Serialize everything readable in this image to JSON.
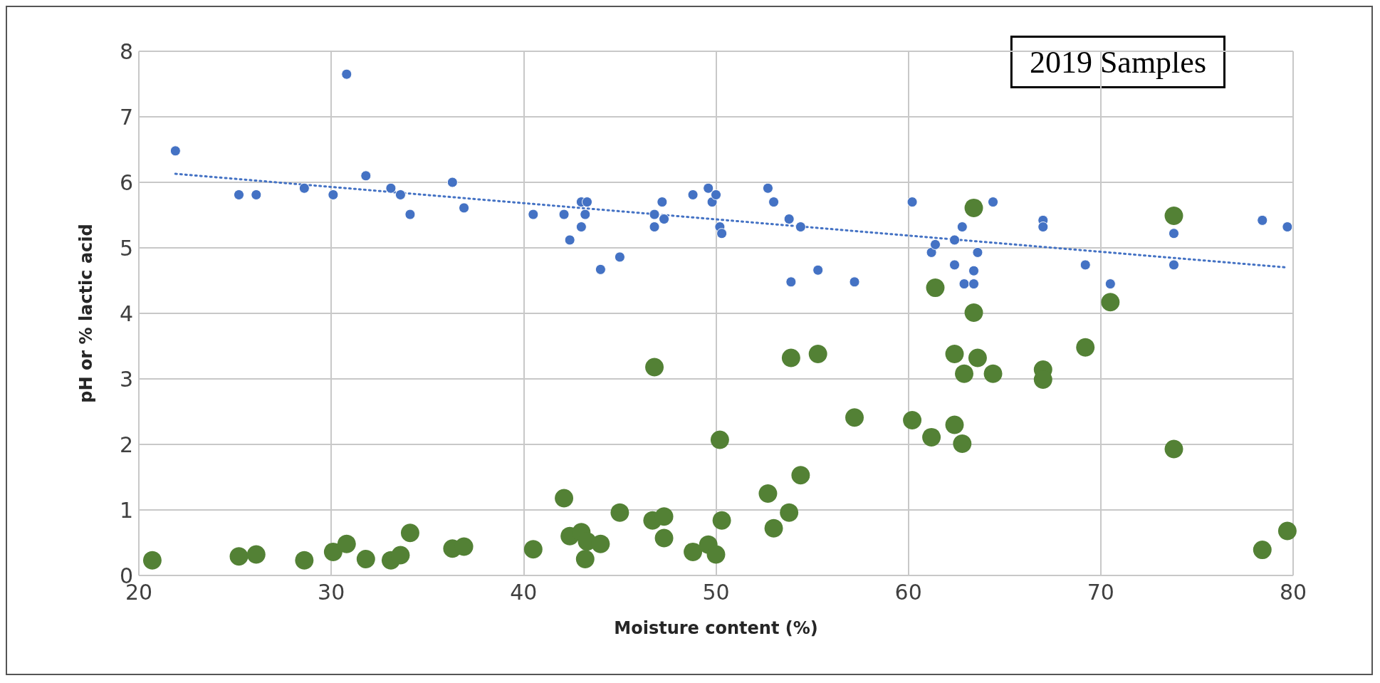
{
  "chart_data": {
    "type": "scatter",
    "xlabel": "Moisture content (%)",
    "ylabel": "pH or % lactic acid",
    "annotations": [
      "2019 Samples"
    ],
    "xlim": [
      20,
      80
    ],
    "xticks": [
      20,
      30,
      40,
      50,
      60,
      70,
      80
    ],
    "ylim": [
      0,
      8
    ],
    "yticks": [
      0,
      1,
      2,
      3,
      4,
      5,
      6,
      7,
      8
    ],
    "grid": true,
    "marker": "circle",
    "series": [
      {
        "color": "#4472c4",
        "x": [
          21.9,
          25.2,
          26.1,
          28.6,
          30.1,
          30.8,
          31.8,
          33.1,
          33.6,
          34.1,
          36.3,
          36.9,
          40.5,
          42.1,
          42.4,
          43.0,
          43.3,
          43.0,
          43.2,
          44.0,
          45.0,
          46.8,
          46.8,
          47.2,
          47.3,
          48.8,
          49.6,
          49.8,
          50.0,
          50.2,
          50.3,
          52.7,
          53.0,
          53.8,
          53.9,
          54.4,
          55.3,
          57.2,
          60.2,
          61.2,
          61.4,
          62.4,
          62.4,
          62.8,
          62.9,
          63.4,
          63.4,
          63.6,
          64.4,
          67.0,
          67.0,
          69.2,
          70.5,
          73.8,
          73.8,
          78.4,
          79.7
        ],
        "values": [
          6.48,
          5.81,
          5.81,
          5.91,
          5.81,
          7.65,
          6.1,
          5.91,
          5.81,
          5.51,
          6.0,
          5.61,
          5.51,
          5.51,
          5.12,
          5.7,
          5.7,
          5.32,
          5.51,
          4.67,
          4.86,
          5.51,
          5.32,
          5.7,
          5.44,
          5.81,
          5.91,
          5.7,
          5.81,
          5.32,
          5.22,
          5.91,
          5.7,
          5.44,
          4.48,
          5.32,
          4.66,
          4.48,
          5.7,
          4.93,
          5.05,
          5.12,
          4.74,
          5.32,
          4.45,
          4.65,
          4.45,
          4.93,
          5.7,
          5.42,
          5.32,
          4.74,
          4.45,
          5.22,
          4.74,
          5.42,
          5.32
        ]
      },
      {
        "color": "#538135",
        "x": [
          20.7,
          25.2,
          26.1,
          28.6,
          30.1,
          30.8,
          31.8,
          33.1,
          33.6,
          34.1,
          36.3,
          36.9,
          40.5,
          42.1,
          42.4,
          43.0,
          43.2,
          43.3,
          44.0,
          45.0,
          46.7,
          46.8,
          47.3,
          47.3,
          48.8,
          49.6,
          50.0,
          50.2,
          50.3,
          52.7,
          53.0,
          53.8,
          53.9,
          54.4,
          55.3,
          57.2,
          60.2,
          61.2,
          61.4,
          62.4,
          62.4,
          62.8,
          62.9,
          63.4,
          63.4,
          63.6,
          64.4,
          67.0,
          67.0,
          69.2,
          70.5,
          73.8,
          73.8,
          78.4,
          79.7
        ],
        "values": [
          0.23,
          0.29,
          0.32,
          0.23,
          0.36,
          0.48,
          0.25,
          0.23,
          0.31,
          0.65,
          0.41,
          0.44,
          0.4,
          1.18,
          0.6,
          0.66,
          0.25,
          0.52,
          0.48,
          0.96,
          0.84,
          3.18,
          0.9,
          0.57,
          0.36,
          0.47,
          0.32,
          2.07,
          0.84,
          1.25,
          0.72,
          0.96,
          3.32,
          1.53,
          3.38,
          2.41,
          2.37,
          2.11,
          4.39,
          3.38,
          2.3,
          2.01,
          3.08,
          4.01,
          5.61,
          3.32,
          3.08,
          3.14,
          2.99,
          3.48,
          4.17,
          5.49,
          1.93,
          0.39,
          0.68
        ]
      },
      {
        "type": "line",
        "color": "#4472c4",
        "x": [
          21.9,
          79.7
        ],
        "values": [
          6.13,
          4.7
        ],
        "line_style": "dotted",
        "marker": "none"
      }
    ]
  }
}
